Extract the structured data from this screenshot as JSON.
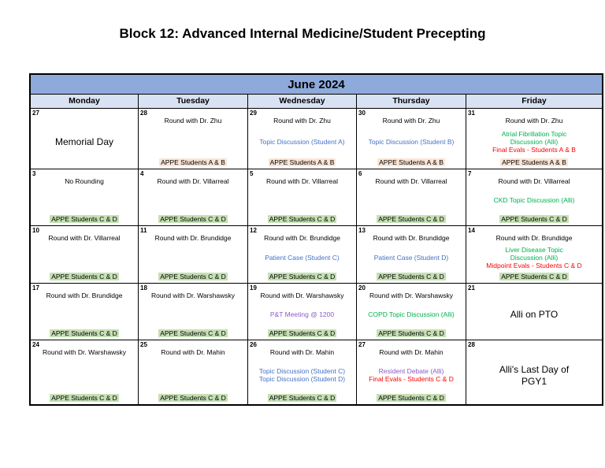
{
  "title": "Block 12: Advanced Internal Medicine/Student Precepting",
  "calendar": {
    "month": "June 2024",
    "day_headers": [
      "Monday",
      "Tuesday",
      "Wednesday",
      "Thursday",
      "Friday"
    ],
    "colors": {
      "month_header_bg": "#8EAADB",
      "day_header_bg": "#D9E2F3",
      "event_blue": "#4472C4",
      "event_green": "#00B050",
      "event_red": "#FF0000",
      "event_purple": "#8A5BC8",
      "highlight_students_ab": "#FBE5D5",
      "highlight_students_cd": "#C5E0B3"
    },
    "weeks": [
      {
        "days": [
          {
            "date": "27",
            "top": [],
            "mid": [
              {
                "text": "Memorial Day",
                "style": "big"
              }
            ]
          },
          {
            "date": "28",
            "top": [
              "Round with Dr. Zhu"
            ],
            "mid": [],
            "appe": {
              "text": "APPE Students A & B",
              "highlight": "ab"
            }
          },
          {
            "date": "29",
            "top": [
              "Round with Dr. Zhu"
            ],
            "mid": [
              {
                "text": "Topic Discussion (Student A)",
                "style": "blue"
              }
            ],
            "appe": {
              "text": "APPE Students A & B",
              "highlight": "ab"
            }
          },
          {
            "date": "30",
            "top": [
              "Round with Dr. Zhu"
            ],
            "mid": [
              {
                "text": "Topic Discussion (Student B)",
                "style": "blue"
              }
            ],
            "appe": {
              "text": "APPE Students A & B",
              "highlight": "ab"
            }
          },
          {
            "date": "31",
            "top": [
              "Round with Dr. Zhu"
            ],
            "mid": [
              {
                "text": "Atrial Fibrillation Topic",
                "style": "green"
              },
              {
                "text": "Discussion (Alli)",
                "style": "green"
              },
              {
                "text": "Final Evals - Students A & B",
                "style": "red"
              }
            ],
            "appe": {
              "text": "APPE Students A & B",
              "highlight": "ab"
            }
          }
        ]
      },
      {
        "days": [
          {
            "date": "3",
            "top": [
              "No Rounding"
            ],
            "mid": [],
            "appe": {
              "text": "APPE Students C & D",
              "highlight": "cd"
            }
          },
          {
            "date": "4",
            "top": [
              "Round with Dr. Villarreal"
            ],
            "mid": [],
            "appe": {
              "text": "APPE Students C & D",
              "highlight": "cd"
            }
          },
          {
            "date": "5",
            "top": [
              "Round with Dr. Villarreal"
            ],
            "mid": [],
            "appe": {
              "text": "APPE Students C & D",
              "highlight": "cd"
            }
          },
          {
            "date": "6",
            "top": [
              "Round with Dr. Villarreal"
            ],
            "mid": [],
            "appe": {
              "text": "APPE Students C & D",
              "highlight": "cd"
            }
          },
          {
            "date": "7",
            "top": [
              "Round with Dr. Villarreal"
            ],
            "mid": [
              {
                "text": "CKD Topic Discussion (Alli)",
                "style": "green"
              }
            ],
            "appe": {
              "text": "APPE Students C & D",
              "highlight": "cd"
            }
          }
        ]
      },
      {
        "days": [
          {
            "date": "10",
            "top": [
              "Round with Dr. Villarreal"
            ],
            "mid": [],
            "appe": {
              "text": "APPE Students C & D",
              "highlight": "cd"
            }
          },
          {
            "date": "11",
            "top": [
              "Round with Dr. Brundidge"
            ],
            "mid": [],
            "appe": {
              "text": "APPE Students C & D",
              "highlight": "cd"
            }
          },
          {
            "date": "12",
            "top": [
              "Round with Dr. Brundidge"
            ],
            "mid": [
              {
                "text": "Patient Case (Student C)",
                "style": "blue"
              }
            ],
            "appe": {
              "text": "APPE Students C & D",
              "highlight": "cd"
            }
          },
          {
            "date": "13",
            "top": [
              "Round with Dr. Brundidge"
            ],
            "mid": [
              {
                "text": "Patient Case (Student D)",
                "style": "blue"
              }
            ],
            "appe": {
              "text": "APPE Students C & D",
              "highlight": "cd"
            }
          },
          {
            "date": "14",
            "top": [
              "Round with Dr. Brundidge"
            ],
            "mid": [
              {
                "text": "Liver Disease Topic",
                "style": "green"
              },
              {
                "text": "Discussion (Alli)",
                "style": "green"
              },
              {
                "text": "Midpoint Evals - Students C & D",
                "style": "red"
              }
            ],
            "appe": {
              "text": "APPE Students C & D",
              "highlight": "cd"
            }
          }
        ]
      },
      {
        "days": [
          {
            "date": "17",
            "top": [
              "Round with Dr. Brundidge"
            ],
            "mid": [],
            "appe": {
              "text": "APPE Students C & D",
              "highlight": "cd"
            }
          },
          {
            "date": "18",
            "top": [
              "Round with Dr. Warshawsky"
            ],
            "mid": [],
            "appe": {
              "text": "APPE Students C & D",
              "highlight": "cd"
            }
          },
          {
            "date": "19",
            "top": [
              "Round with Dr. Warshawsky"
            ],
            "mid": [
              {
                "text": "P&T Meeting @ 1200",
                "style": "purple"
              }
            ],
            "appe": {
              "text": "APPE Students C & D",
              "highlight": "cd"
            }
          },
          {
            "date": "20",
            "top": [
              "Round with Dr. Warshawsky"
            ],
            "mid": [
              {
                "text": "COPD Topic Discussion (Alli)",
                "style": "green"
              }
            ],
            "appe": {
              "text": "APPE Students C & D",
              "highlight": "cd"
            }
          },
          {
            "date": "21",
            "top": [],
            "mid": [
              {
                "text": "Alli on PTO",
                "style": "big"
              }
            ]
          }
        ]
      },
      {
        "days": [
          {
            "date": "24",
            "top": [
              "Round with Dr. Warshawsky"
            ],
            "mid": [],
            "appe": {
              "text": "APPE Students C & D",
              "highlight": "cd"
            }
          },
          {
            "date": "25",
            "top": [
              "Round with Dr. Mahin"
            ],
            "mid": [],
            "appe": {
              "text": "APPE Students C & D",
              "highlight": "cd"
            }
          },
          {
            "date": "26",
            "top": [
              "Round with Dr. Mahin"
            ],
            "mid": [
              {
                "text": "Topic Discussion (Student C)",
                "style": "blue"
              },
              {
                "text": "Topic Discussion (Student D)",
                "style": "blue"
              }
            ],
            "appe": {
              "text": "APPE Students C & D",
              "highlight": "cd"
            }
          },
          {
            "date": "27",
            "top": [
              "Round with Dr. Mahin"
            ],
            "mid": [
              {
                "text": "Resident Debate (Alli)",
                "style": "purple"
              },
              {
                "text": "Final Evals - Students C & D",
                "style": "red"
              }
            ],
            "appe": {
              "text": "APPE Students C & D",
              "highlight": "cd"
            }
          },
          {
            "date": "28",
            "top": [],
            "mid": [
              {
                "text": "Alli's Last Day of",
                "style": "big"
              },
              {
                "text": "PGY1",
                "style": "big"
              }
            ]
          }
        ]
      }
    ]
  }
}
